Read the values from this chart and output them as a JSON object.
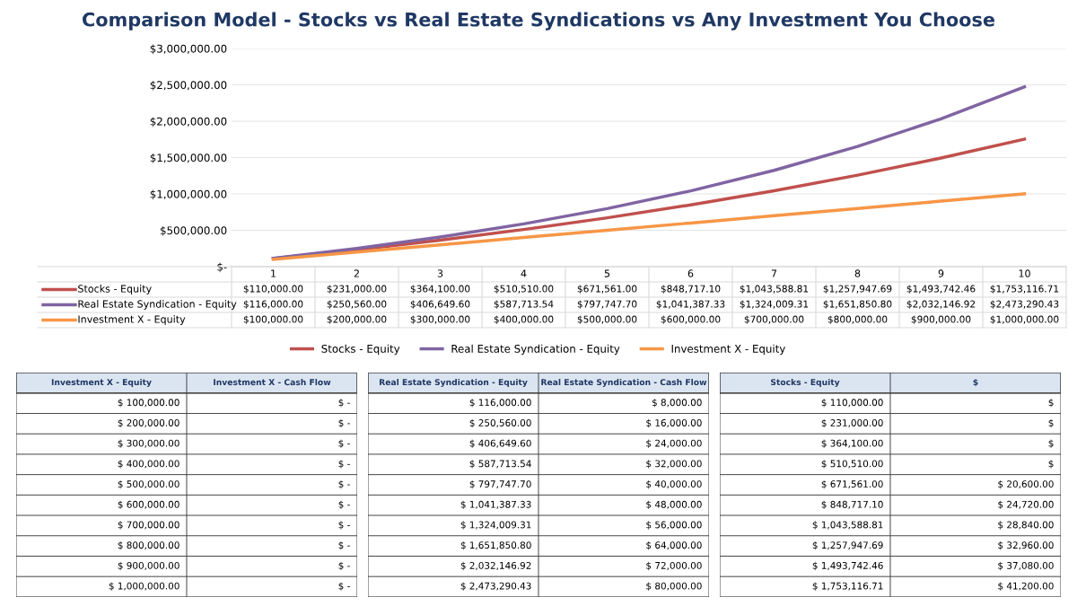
{
  "chart_data": [
    {
      "type": "line",
      "title": "Comparison Model - Stocks vs Real Estate Syndications vs Any Investment You Choose",
      "categories": [
        "1",
        "2",
        "3",
        "4",
        "5",
        "6",
        "7",
        "8",
        "9",
        "10"
      ],
      "series": [
        {
          "name": "Stocks - Equity",
          "color": "#c0504d",
          "values": [
            110000,
            231000,
            364100,
            510510,
            671561,
            848717.1,
            1043588.81,
            1257947.69,
            1493742.46,
            1753116.71
          ],
          "value_labels": [
            "$110,000.00",
            "$231,000.00",
            "$364,100.00",
            "$510,510.00",
            "$671,561.00",
            "$848,717.10",
            "$1,043,588.81",
            "$1,257,947.69",
            "$1,493,742.46",
            "$1,753,116.71"
          ]
        },
        {
          "name": "Real Estate Syndication - Equity",
          "color": "#8064a2",
          "values": [
            116000,
            250560,
            406649.6,
            587713.54,
            797747.7,
            1041387.33,
            1324009.31,
            1651850.8,
            2032146.92,
            2473290.43
          ],
          "value_labels": [
            "$116,000.00",
            "$250,560.00",
            "$406,649.60",
            "$587,713.54",
            "$797,747.70",
            "$1,041,387.33",
            "$1,324,009.31",
            "$1,651,850.80",
            "$2,032,146.92",
            "$2,473,290.43"
          ]
        },
        {
          "name": "Investment X - Equity",
          "color": "#f79646",
          "values": [
            100000,
            200000,
            300000,
            400000,
            500000,
            600000,
            700000,
            800000,
            900000,
            1000000
          ],
          "value_labels": [
            "$100,000.00",
            "$200,000.00",
            "$300,000.00",
            "$400,000.00",
            "$500,000.00",
            "$600,000.00",
            "$700,000.00",
            "$800,000.00",
            "$900,000.00",
            "$1,000,000.00"
          ]
        }
      ],
      "ylim": [
        0,
        3000000
      ],
      "yticks": [
        {
          "value": 0,
          "label": "$-"
        },
        {
          "value": 500000,
          "label": "$500,000.00"
        },
        {
          "value": 1000000,
          "label": "$1,000,000.00"
        },
        {
          "value": 1500000,
          "label": "$1,500,000.00"
        },
        {
          "value": 2000000,
          "label": "$2,000,000.00"
        },
        {
          "value": 2500000,
          "label": "$2,500,000.00"
        },
        {
          "value": 3000000,
          "label": "$3,000,000.00"
        }
      ],
      "grid": "y",
      "legend": "bottom",
      "marker": "none",
      "line_style": "solid"
    },
    {
      "type": "other",
      "annotations": [
        "Investment X - Equity",
        "Investment X - Cash Flow",
        "$ 100,000.00",
        "$ -",
        "$ 200,000.00",
        "$ -",
        "$ 300,000.00",
        "$ -",
        "$ 400,000.00",
        "$ -",
        "$ 500,000.00",
        "$ -",
        "$ 600,000.00",
        "$ -",
        "$ 700,000.00",
        "$ -",
        "$ 800,000.00",
        "$ -",
        "$ 900,000.00",
        "$ -",
        "$ 1,000,000.00",
        "$ -"
      ]
    },
    {
      "type": "other",
      "annotations": [
        "Real Estate Syndication - Equity",
        "Real Estate Syndication - Cash Flow",
        "$ 116,000.00",
        "$ 8,000.00",
        "$ 250,560.00",
        "$ 16,000.00",
        "$ 406,649.60",
        "$ 24,000.00",
        "$ 587,713.54",
        "$ 32,000.00",
        "$ 797,747.70",
        "$ 40,000.00",
        "$ 1,041,387.33",
        "$ 48,000.00",
        "$ 1,324,009.31",
        "$ 56,000.00",
        "$ 1,651,850.80",
        "$ 64,000.00",
        "$ 2,032,146.92",
        "$ 72,000.00",
        "$ 2,473,290.43",
        "$ 80,000.00"
      ]
    },
    {
      "type": "other",
      "annotations": [
        "Stocks - Equity",
        "$",
        "$ 110,000.00",
        "$",
        "$ 231,000.00",
        "$",
        "$ 364,100.00",
        "$",
        "$ 510,510.00",
        "$",
        "$ 671,561.00",
        "$ 20,600.00",
        "$ 848,717.10",
        "$ 24,720.00",
        "$ 1,043,588.81",
        "$ 28,840.00",
        "$ 1,257,947.69",
        "$ 32,960.00",
        "$ 1,493,742.46",
        "$ 37,080.00",
        "$ 1,753,116.71",
        "$ 41,200.00"
      ]
    }
  ]
}
